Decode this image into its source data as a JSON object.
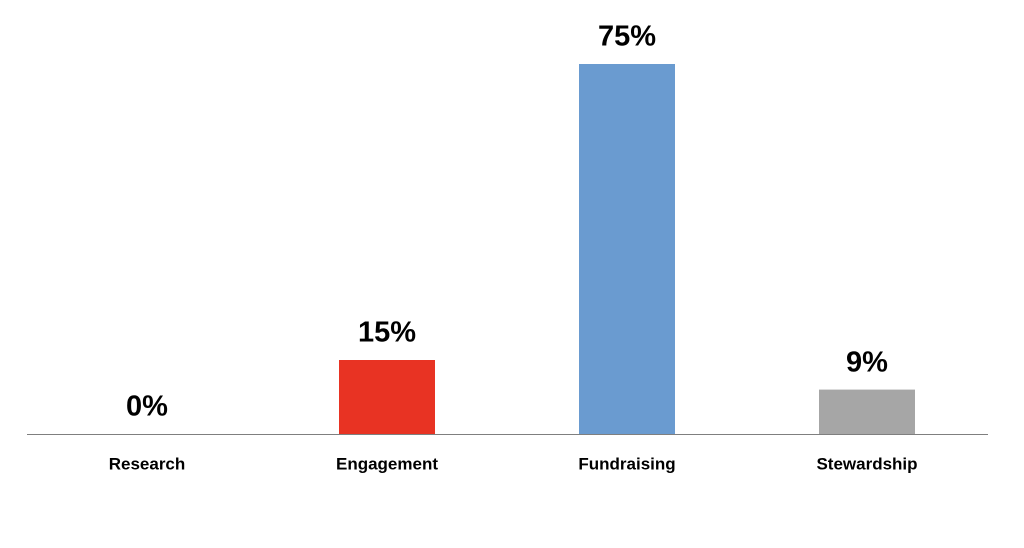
{
  "chart_data": {
    "type": "bar",
    "categories": [
      "Research",
      "Engagement",
      "Fundraising",
      "Stewardship"
    ],
    "values": [
      0,
      15,
      75,
      9
    ],
    "value_labels": [
      "0%",
      "15%",
      "75%",
      "9%"
    ],
    "colors": [
      "#6a9bd0",
      "#e83323",
      "#6a9bd0",
      "#a6a6a6"
    ]
  }
}
